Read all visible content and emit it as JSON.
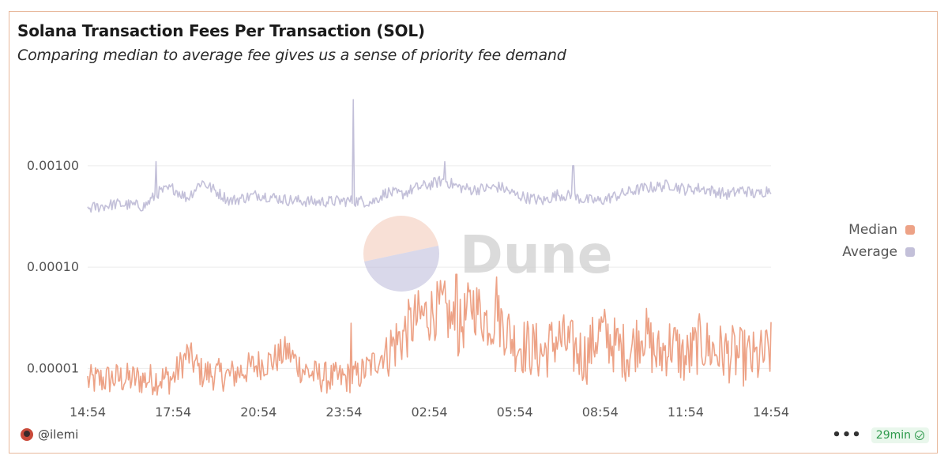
{
  "chart_data": {
    "type": "line",
    "title": "Solana Transaction Fees Per Transaction (SOL)",
    "subtitle": "Comparing median to average fee gives us a sense of priority fee demand",
    "yscale": "log",
    "ylim": [
      5e-06,
      0.006
    ],
    "yticks": [
      {
        "value": 0.001,
        "label": "0.00100"
      },
      {
        "value": 0.0001,
        "label": "0.00010"
      },
      {
        "value": 1e-05,
        "label": "0.00001"
      }
    ],
    "xlim": [
      0,
      24
    ],
    "xticks": [
      {
        "value": 0,
        "label": "14:54"
      },
      {
        "value": 3,
        "label": "17:54"
      },
      {
        "value": 6,
        "label": "20:54"
      },
      {
        "value": 9,
        "label": "23:54"
      },
      {
        "value": 12,
        "label": "02:54"
      },
      {
        "value": 15,
        "label": "05:54"
      },
      {
        "value": 18,
        "label": "08:54"
      },
      {
        "value": 21,
        "label": "11:54"
      },
      {
        "value": 24,
        "label": "14:54"
      }
    ],
    "series": [
      {
        "name": "Median",
        "color": "#eda286",
        "x": [
          0,
          1,
          2,
          3,
          3.5,
          4,
          5,
          6,
          6.5,
          7,
          7.5,
          8,
          8.5,
          9,
          9.5,
          10,
          10.5,
          11,
          11.5,
          12,
          12.5,
          13,
          13.5,
          14,
          14.5,
          15,
          15.5,
          16,
          16.5,
          17,
          17.5,
          18,
          18.5,
          19,
          19.5,
          20,
          20.5,
          21,
          21.5,
          22,
          22.5,
          23,
          23.5,
          24
        ],
        "values": [
          7.5e-06,
          8e-06,
          7.8e-06,
          8e-06,
          1.4e-05,
          9e-06,
          8.5e-06,
          1.1e-05,
          1.2e-05,
          1.5e-05,
          1e-05,
          8.5e-06,
          8e-06,
          8e-06,
          8.5e-06,
          1.1e-05,
          1.5e-05,
          2e-05,
          3e-05,
          3.5e-05,
          4e-05,
          2.2e-05,
          4.5e-05,
          3e-05,
          3e-05,
          1.8e-05,
          1.6e-05,
          1.4e-05,
          2e-05,
          1.6e-05,
          1.3e-05,
          2.4e-05,
          1.7e-05,
          1.4e-05,
          2.4e-05,
          1.3e-05,
          1.8e-05,
          1.2e-05,
          1.8e-05,
          1.5e-05,
          1.4e-05,
          1.3e-05,
          1.2e-05,
          1.5e-05
        ]
      },
      {
        "name": "Average",
        "color": "#c3c0d9",
        "x": [
          0,
          1,
          2,
          2.5,
          3,
          3.5,
          4,
          5,
          6,
          7,
          8,
          9,
          9.5,
          10,
          10.5,
          11,
          11.5,
          12,
          12.5,
          13,
          13.5,
          14,
          14.5,
          15,
          15.5,
          16,
          16.5,
          17,
          17.5,
          18,
          18.5,
          19,
          19.5,
          20,
          20.5,
          21,
          21.5,
          22,
          22.5,
          23,
          23.5,
          24
        ],
        "values": [
          0.00038,
          0.00042,
          0.0004,
          0.00055,
          0.0006,
          0.00048,
          0.0007,
          0.00045,
          0.00052,
          0.00046,
          0.00044,
          0.00045,
          0.00045,
          0.00044,
          0.00055,
          0.00052,
          0.0006,
          0.00065,
          0.00072,
          0.00062,
          0.00058,
          0.0006,
          0.00062,
          0.00052,
          0.00048,
          0.00045,
          0.00052,
          0.0005,
          0.00046,
          0.00045,
          0.0005,
          0.00055,
          0.0006,
          0.00062,
          0.00065,
          0.00058,
          0.0006,
          0.00056,
          0.00052,
          0.00058,
          0.00052,
          0.0006
        ]
      }
    ],
    "spikes": [
      {
        "series": "Average",
        "x": 9.33,
        "value": 0.0045
      },
      {
        "series": "Average",
        "x": 2.4,
        "value": 0.0011
      },
      {
        "series": "Average",
        "x": 12.55,
        "value": 0.0011
      },
      {
        "series": "Average",
        "x": 17.05,
        "value": 0.001
      },
      {
        "series": "Median",
        "x": 12.95,
        "value": 8.5e-05
      },
      {
        "series": "Median",
        "x": 14.35,
        "value": 8e-05
      },
      {
        "series": "Median",
        "x": 9.25,
        "value": 2.8e-05
      }
    ],
    "legend_position": "right"
  },
  "legend": {
    "items": [
      {
        "label": "Median",
        "color": "#eda286"
      },
      {
        "label": "Average",
        "color": "#c3c0d9"
      }
    ]
  },
  "watermark": {
    "text": "Dune"
  },
  "footer": {
    "author": "@ilemi",
    "more_label": "•••",
    "refresh_label": "29min"
  }
}
